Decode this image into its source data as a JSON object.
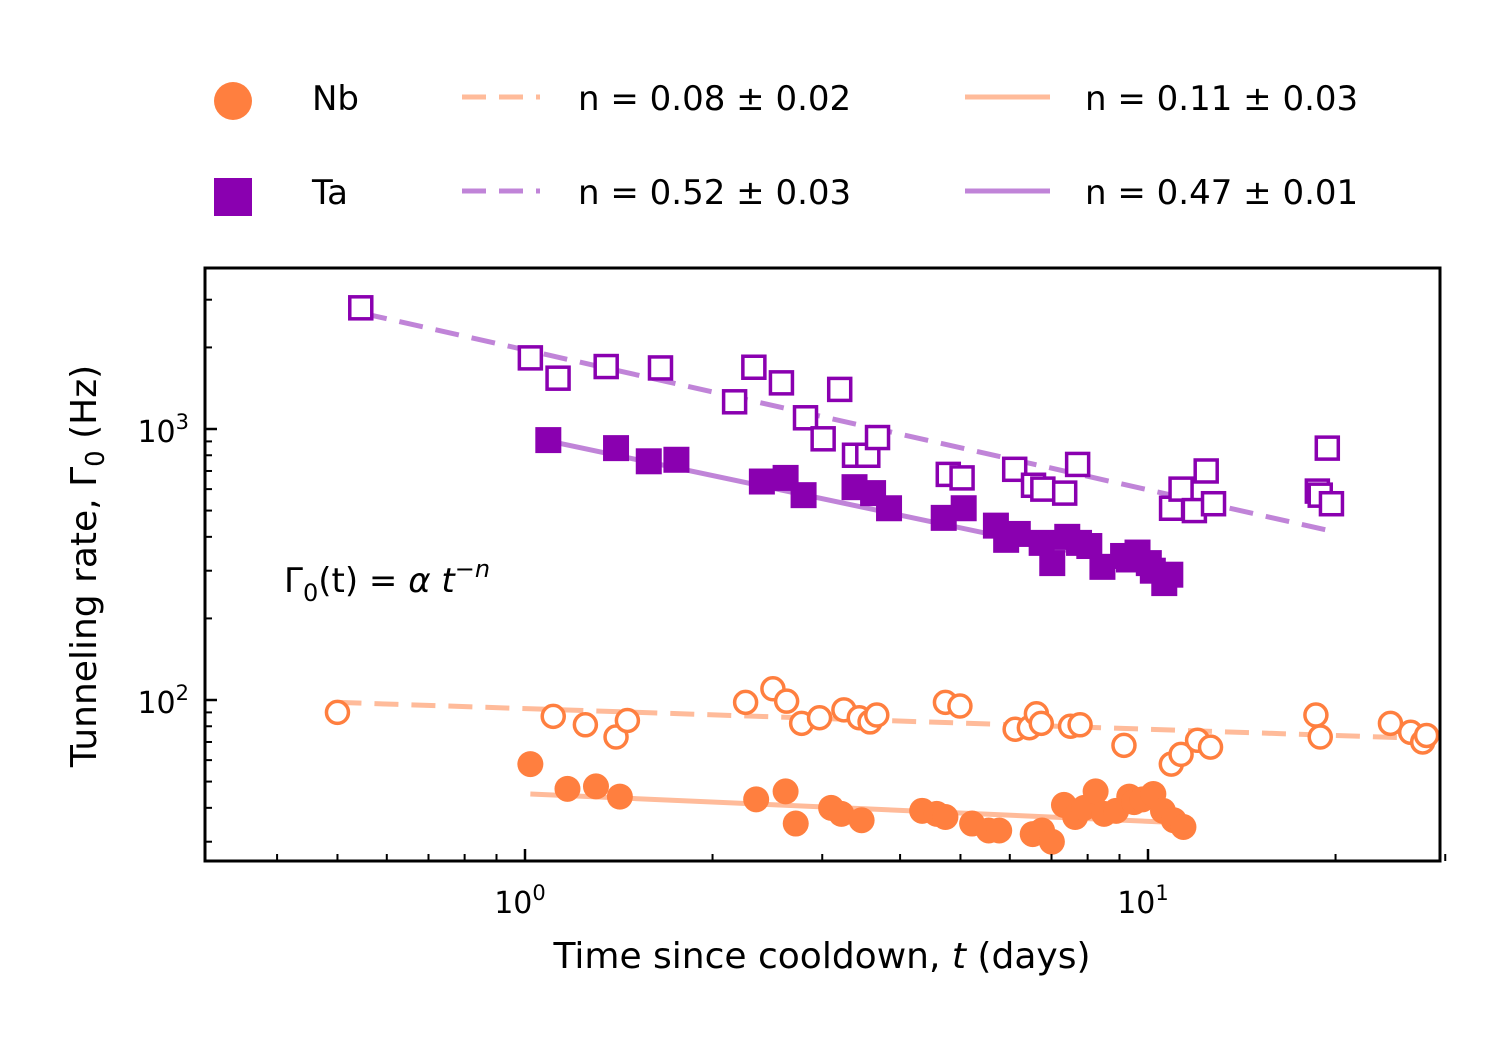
{
  "chart_data": {
    "type": "scatter",
    "xscale": "log",
    "yscale": "log",
    "xlim": [
      0.31,
      30
    ],
    "ylim": [
      25,
      3900
    ],
    "xlabel": {
      "text": "Time since cooldown, ",
      "var": "t",
      "unit": " (days)"
    },
    "ylabel": {
      "text": "Tunneling rate, Γ",
      "sub": "0",
      "unit": " (Hz)"
    },
    "x_ticks": [
      {
        "value": 1,
        "base": "10",
        "exp": "0"
      },
      {
        "value": 10,
        "base": "10",
        "exp": "1"
      }
    ],
    "y_ticks": [
      {
        "value": 100,
        "base": "10",
        "exp": "2"
      },
      {
        "value": 1000,
        "base": "10",
        "exp": "3"
      }
    ],
    "annotation": {
      "lhs": "Γ",
      "sub": "0",
      "arg": "(t)",
      "eq": " = α t",
      "sup": "−n"
    },
    "colors": {
      "Nb": "#ff7f3f",
      "Ta": "#8a00b0",
      "Nb_fit": "#ffbb9a",
      "Ta_fit": "#c084d8"
    },
    "legend": [
      {
        "marker": "circle-filled",
        "label": "Nb",
        "color": "#ff7f3f"
      },
      {
        "marker": "dashed-line",
        "label": "n = 0.08 ± 0.02",
        "color": "#ffbb9a"
      },
      {
        "marker": "solid-line",
        "label": "n = 0.11 ± 0.03",
        "color": "#ffbb9a"
      },
      {
        "marker": "square-filled",
        "label": "Ta",
        "color": "#8a00b0"
      },
      {
        "marker": "dashed-line",
        "label": "n = 0.52 ± 0.03",
        "color": "#c084d8"
      },
      {
        "marker": "solid-line",
        "label": "n = 0.47 ± 0.01",
        "color": "#c084d8"
      }
    ],
    "series": [
      {
        "name": "Ta open",
        "marker": "square",
        "fill": "none",
        "color": "#8a00b0",
        "x": [
          0.545,
          1.02,
          1.13,
          1.35,
          1.65,
          2.17,
          2.33,
          2.58,
          2.82,
          3.01,
          3.2,
          3.38,
          3.55,
          3.68,
          4.78,
          5.03,
          6.11,
          6.55,
          6.78,
          7.35,
          7.71,
          10.91,
          11.3,
          11.87,
          12.4,
          12.74,
          18.7,
          18.9,
          19.4,
          19.7
        ],
        "y": [
          2800,
          1830,
          1540,
          1700,
          1680,
          1260,
          1690,
          1480,
          1100,
          920,
          1400,
          800,
          800,
          930,
          680,
          660,
          710,
          620,
          600,
          580,
          740,
          510,
          600,
          500,
          700,
          530,
          590,
          570,
          850,
          530
        ]
      },
      {
        "name": "Ta filled",
        "marker": "square",
        "fill": "solid",
        "color": "#8a00b0",
        "x": [
          1.09,
          1.4,
          1.58,
          1.75,
          2.4,
          2.62,
          2.8,
          3.38,
          3.62,
          3.84,
          4.7,
          5.06,
          5.7,
          5.92,
          6.18,
          6.75,
          7.02,
          7.42,
          7.75,
          8.05,
          8.45,
          9.12,
          9.32,
          9.62,
          10.03,
          10.18,
          10.62,
          10.86
        ],
        "y": [
          910,
          850,
          760,
          770,
          640,
          660,
          570,
          610,
          580,
          510,
          470,
          510,
          440,
          390,
          410,
          380,
          320,
          400,
          380,
          370,
          310,
          340,
          330,
          350,
          320,
          300,
          270,
          290
        ]
      },
      {
        "name": "Nb open",
        "marker": "circle",
        "fill": "none",
        "color": "#ff7f3f",
        "x": [
          0.5,
          1.11,
          1.25,
          1.4,
          1.46,
          2.26,
          2.5,
          2.63,
          2.78,
          2.97,
          3.25,
          3.44,
          3.58,
          3.67,
          4.73,
          4.99,
          6.12,
          6.45,
          6.62,
          6.74,
          7.51,
          7.78,
          9.15,
          10.9,
          11.3,
          12.01,
          12.6,
          18.6,
          18.9,
          24.5,
          26.4,
          27.6,
          28.0
        ],
        "y": [
          90,
          87,
          81,
          73,
          84,
          98,
          110,
          99,
          82,
          86,
          92,
          86,
          83,
          88,
          98,
          95,
          78,
          79,
          89,
          82,
          80,
          81,
          68,
          58,
          63,
          71,
          67,
          88,
          73,
          82,
          76,
          70,
          74
        ]
      },
      {
        "name": "Nb filled",
        "marker": "circle",
        "fill": "solid",
        "color": "#ff7f3f",
        "x": [
          1.02,
          1.17,
          1.3,
          1.42,
          2.35,
          2.62,
          2.72,
          3.1,
          3.22,
          3.47,
          4.34,
          4.58,
          4.73,
          5.22,
          5.55,
          5.77,
          6.53,
          6.76,
          7.01,
          7.33,
          7.64,
          7.9,
          8.24,
          8.5,
          8.89,
          9.33,
          9.5,
          9.8,
          10.2,
          10.57,
          11.0,
          11.4
        ],
        "y": [
          58,
          47,
          48,
          44,
          43,
          46,
          35,
          40,
          38,
          36,
          39,
          38,
          37,
          35,
          33,
          33,
          32,
          33,
          30,
          41,
          37,
          40,
          46,
          38,
          39,
          44,
          42,
          43,
          45,
          39,
          36,
          34
        ]
      }
    ],
    "fits": [
      {
        "name": "Ta dashed fit",
        "style": "dashed",
        "color": "#c084d8",
        "x": [
          0.55,
          19.7
        ],
        "y": [
          2670,
          420
        ]
      },
      {
        "name": "Ta solid fit",
        "style": "solid",
        "color": "#c084d8",
        "x": [
          1.05,
          10.9
        ],
        "y": [
          920,
          296
        ]
      },
      {
        "name": "Nb dashed fit",
        "style": "dashed",
        "color": "#ffbb9a",
        "x": [
          0.5,
          28.5
        ],
        "y": [
          98,
          72
        ]
      },
      {
        "name": "Nb solid fit",
        "style": "solid",
        "color": "#ffbb9a",
        "x": [
          1.02,
          11.4
        ],
        "y": [
          45,
          35.2
        ]
      }
    ]
  }
}
